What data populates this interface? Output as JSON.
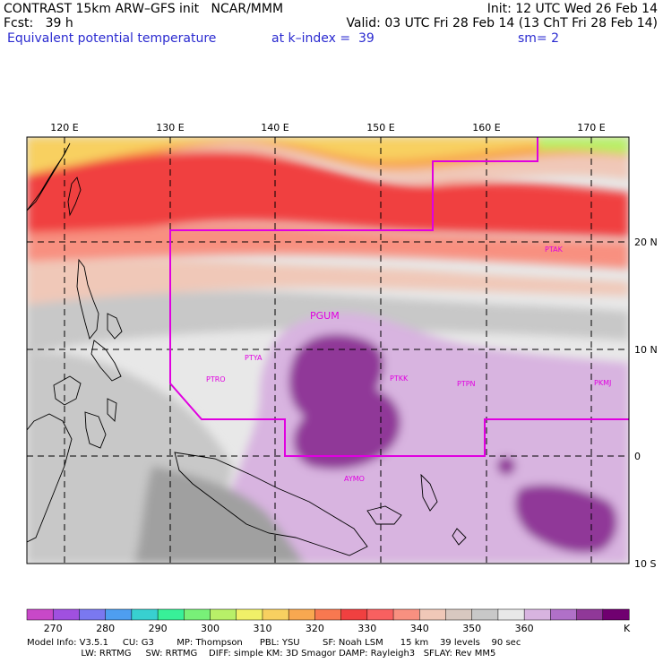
{
  "header": {
    "title_left": "CONTRAST 15km ARW–GFS init   NCAR/MMM",
    "init": "Init: 12 UTC Wed 26 Feb 14",
    "fcst": "Fcst:   39 h",
    "valid": "Valid: 03 UTC Fri 28 Feb 14 (13 ChT Fri 28 Feb 14)",
    "field": "Equivalent potential temperature",
    "level": "at k–index =  39",
    "smooth": "sm= 2"
  },
  "map": {
    "lon_labels": [
      "120 E",
      "130 E",
      "140 E",
      "150 E",
      "160 E",
      "170 E"
    ],
    "lat_labels": [
      "20 N",
      "10 N",
      "0",
      "10 S"
    ],
    "stations": [
      "PTAK",
      "PGUM",
      "PTYA",
      "PTRO",
      "PTKK",
      "PTPN",
      "PKMJ",
      "AYMO"
    ]
  },
  "colorbar": {
    "colors": [
      "#c848c8",
      "#a050e0",
      "#7a78f0",
      "#4e9ef0",
      "#38d0d0",
      "#38f098",
      "#78f078",
      "#b8f068",
      "#f0f068",
      "#f8d060",
      "#f8a850",
      "#f87850",
      "#f04040",
      "#f86060",
      "#f89080",
      "#f0c8b8",
      "#d8c8c0",
      "#c8c8c8",
      "#e8e8e8",
      "#d8b4e0",
      "#b070c8",
      "#903898",
      "#700070"
    ],
    "tick_labels": [
      "270",
      "280",
      "290",
      "300",
      "310",
      "320",
      "330",
      "340",
      "350",
      "360"
    ],
    "units": "K"
  },
  "footer": {
    "line1": "Model Info: V3.5.1     CU: G3        MP: Thompson      PBL: YSU        SF: Noah LSM      15 km    39 levels    90 sec",
    "line2": "                   LW: RRTMG     SW: RRTMG    DIFF: simple KM: 3D Smagor DAMP: Rayleigh3   SFLAY: Rev MM5"
  }
}
